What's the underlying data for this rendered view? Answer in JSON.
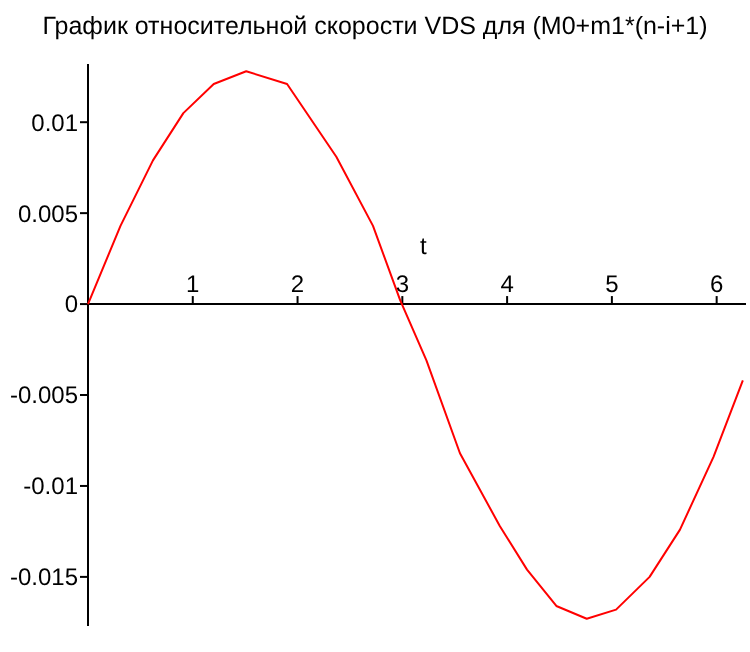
{
  "chart_data": {
    "type": "line",
    "title": "График относительной скорости VDS для (M0+m1*(n-i+1)",
    "xlabel": "t",
    "xlim": [
      0,
      6.28
    ],
    "ylim": [
      -0.0177,
      0.0132
    ],
    "xticks": [
      1,
      2,
      3,
      4,
      5,
      6
    ],
    "yticks": [
      {
        "value": 0.01,
        "label": "0.01"
      },
      {
        "value": 0.005,
        "label": "0.005"
      },
      0,
      {
        "value": -0.005,
        "label": "-0.005"
      },
      {
        "value": -0.01,
        "label": "-0.01"
      },
      {
        "value": -0.015,
        "label": "-0.015"
      }
    ],
    "grid": false,
    "marker": "none",
    "line_style": "solid",
    "series": [
      {
        "color": "#ff0000",
        "x": [
          0,
          0.31,
          0.62,
          0.91,
          1.2,
          1.51,
          1.9,
          2.37,
          2.72,
          2.98,
          3.23,
          3.55,
          3.93,
          4.19,
          4.47,
          4.76,
          5.04,
          5.36,
          5.65,
          5.97,
          6.25
        ],
        "values": [
          0,
          0.0043,
          0.0079,
          0.0105,
          0.0121,
          0.0128,
          0.0121,
          0.0081,
          0.0043,
          0.0002,
          -0.0031,
          -0.0082,
          -0.0122,
          -0.0146,
          -0.0166,
          -0.0173,
          -0.0168,
          -0.015,
          -0.0124,
          -0.0084,
          -0.0042
        ]
      }
    ]
  }
}
